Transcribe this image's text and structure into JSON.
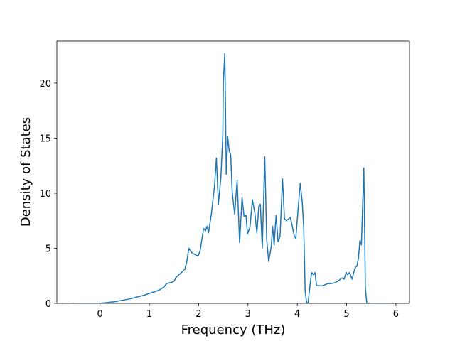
{
  "chart_data": {
    "type": "line",
    "xlabel": "Frequency (THz)",
    "ylabel": "Density of States",
    "x": [
      -0.55,
      0,
      0.3,
      0.6,
      0.9,
      1.0,
      1.2,
      1.3,
      1.35,
      1.45,
      1.5,
      1.55,
      1.65,
      1.72,
      1.76,
      1.8,
      1.86,
      1.94,
      1.99,
      2.03,
      2.1,
      2.14,
      2.17,
      2.2,
      2.26,
      2.32,
      2.36,
      2.4,
      2.45,
      2.49,
      2.5,
      2.53,
      2.56,
      2.59,
      2.62,
      2.65,
      2.68,
      2.73,
      2.78,
      2.83,
      2.88,
      2.92,
      2.96,
      2.99,
      3.04,
      3.09,
      3.14,
      3.18,
      3.22,
      3.25,
      3.29,
      3.34,
      3.38,
      3.42,
      3.47,
      3.5,
      3.53,
      3.57,
      3.61,
      3.65,
      3.7,
      3.74,
      3.78,
      3.86,
      3.94,
      3.97,
      4.01,
      4.06,
      4.1,
      4.13,
      4.16,
      4.19,
      4.22,
      4.26,
      4.29,
      4.33,
      4.36,
      4.39,
      4.52,
      4.62,
      4.7,
      4.78,
      4.85,
      4.9,
      4.95,
      4.99,
      5.02,
      5.06,
      5.11,
      5.17,
      5.21,
      5.24,
      5.27,
      5.3,
      5.32,
      5.35,
      5.38,
      5.41,
      5.95
    ],
    "series": [
      {
        "color": "#1f77b4",
        "values": [
          0,
          0,
          0.15,
          0.4,
          0.75,
          0.9,
          1.2,
          1.5,
          1.8,
          1.9,
          2.0,
          2.4,
          2.8,
          3.1,
          3.8,
          5.0,
          4.6,
          4.4,
          4.3,
          4.8,
          6.8,
          6.6,
          7.0,
          6.4,
          8.2,
          10.6,
          13.2,
          9.0,
          11.4,
          15.3,
          20.1,
          22.7,
          11.7,
          15.1,
          13.8,
          13.5,
          10.1,
          8.1,
          11.2,
          5.5,
          9.6,
          7.9,
          8.0,
          6.3,
          6.9,
          9.4,
          8.2,
          6.4,
          8.8,
          9.0,
          5.0,
          13.3,
          5.8,
          3.8,
          5.1,
          7.0,
          5.3,
          8.0,
          5.6,
          6.1,
          11.3,
          7.7,
          7.5,
          7.8,
          6.1,
          5.9,
          8.2,
          10.9,
          9.2,
          6.9,
          1.1,
          0,
          0.1,
          1.7,
          2.8,
          2.6,
          2.8,
          1.6,
          1.6,
          1.8,
          1.8,
          1.9,
          2.1,
          2.3,
          2.2,
          2.8,
          2.6,
          2.8,
          2.2,
          3.2,
          3.4,
          4.1,
          5.7,
          5.3,
          8.2,
          12.3,
          1.4,
          0,
          0
        ]
      }
    ],
    "xlim": [
      -0.875,
      6.275
    ],
    "ylim": [
      0,
      23.8
    ],
    "xticks": [
      0,
      1,
      2,
      3,
      4,
      5,
      6
    ],
    "yticks": [
      0,
      5,
      10,
      15,
      20
    ]
  }
}
